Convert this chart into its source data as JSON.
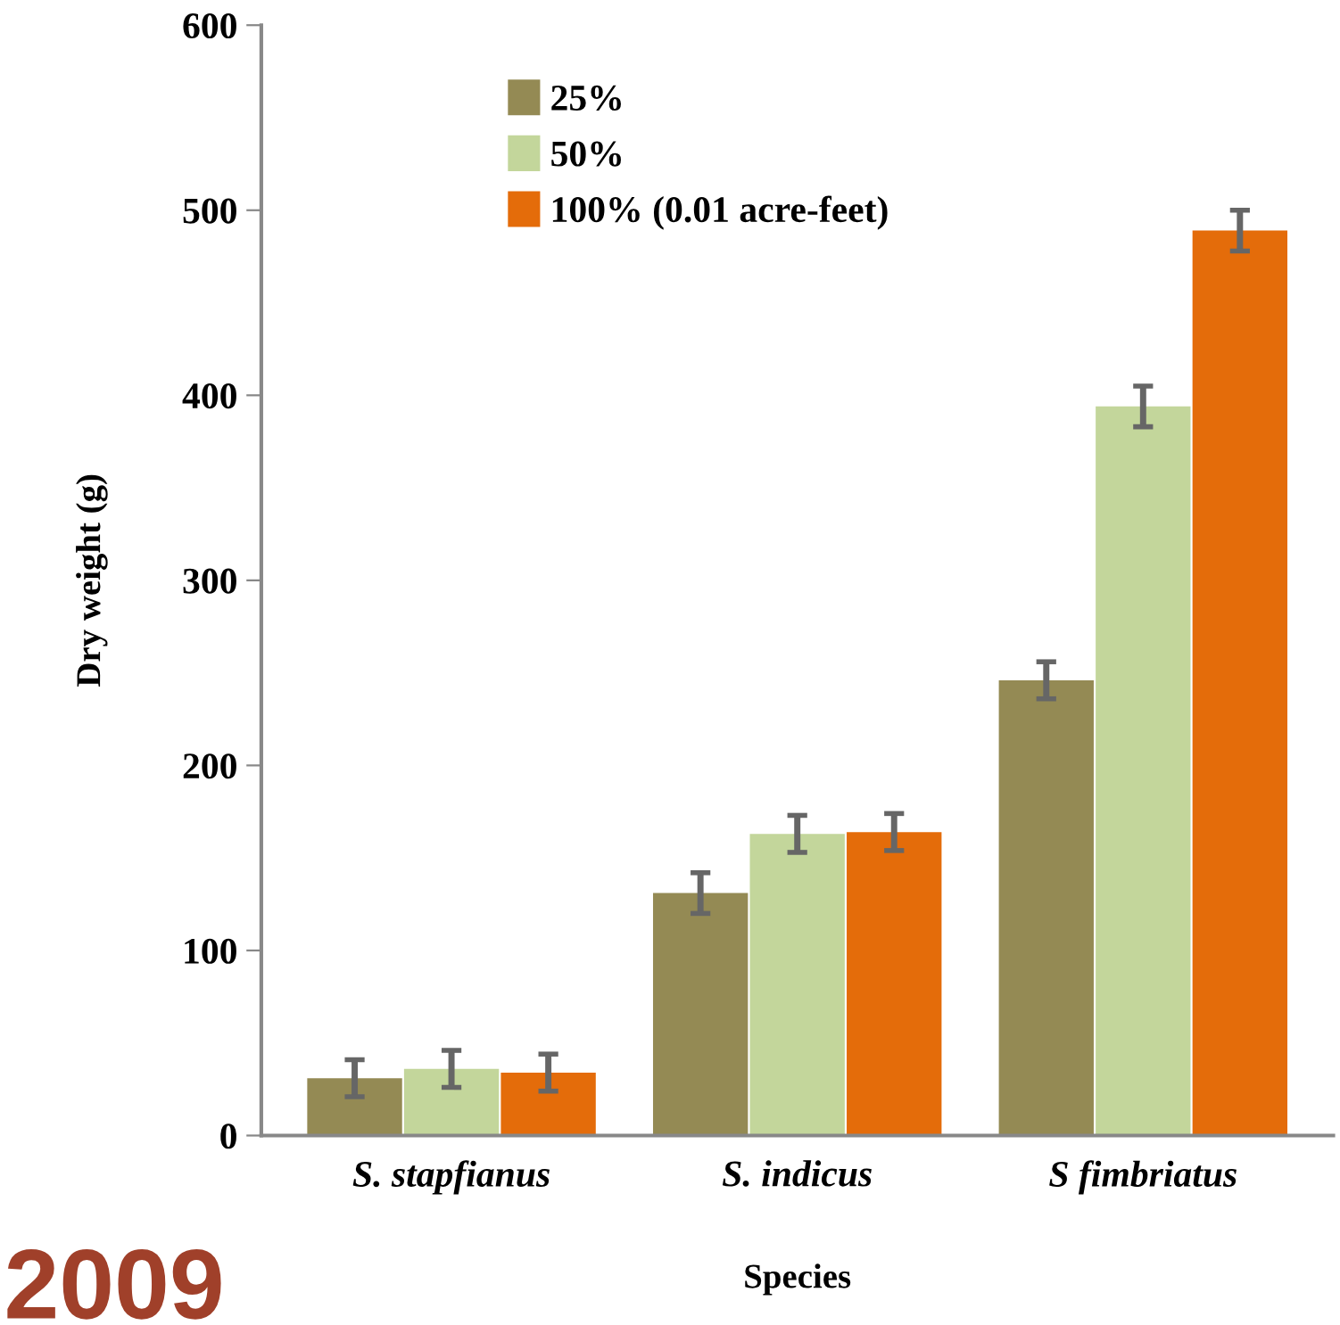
{
  "chart_data": {
    "type": "bar",
    "xlabel": "Species",
    "ylabel": "Dry weight (g)",
    "categories": [
      "S. stapfianus",
      "S. indicus",
      "S fimbriatus"
    ],
    "series": [
      {
        "name": "25%",
        "color": "#948a54",
        "values": [
          31,
          131,
          246
        ],
        "errors": [
          10,
          11,
          10
        ]
      },
      {
        "name": "50%",
        "color": "#c3d69b",
        "values": [
          36,
          163,
          394
        ],
        "errors": [
          10,
          10,
          11
        ]
      },
      {
        "name": "100% (0.01 acre-feet)",
        "color": "#e46c0a",
        "values": [
          34,
          164,
          489
        ],
        "errors": [
          10,
          10,
          11
        ]
      }
    ],
    "ylim": [
      0,
      600
    ],
    "yticks": [
      0,
      100,
      200,
      300,
      400,
      500,
      600
    ],
    "grid": false,
    "legend": "top left",
    "annotations": [
      "2009"
    ]
  }
}
